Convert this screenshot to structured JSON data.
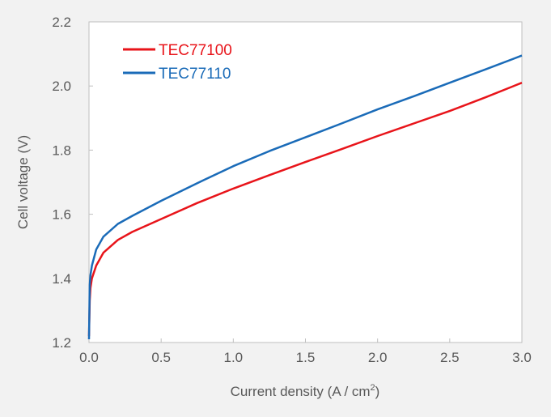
{
  "chart_data": {
    "type": "line",
    "title": "",
    "xlabel": "Current density (A / cm",
    "xlabel_sup": "2",
    "xlabel_end": ")",
    "ylabel": "Cell voltage (V)",
    "xlim": [
      0,
      3.0
    ],
    "ylim": [
      1.2,
      2.2
    ],
    "xticks": [
      "0.0",
      "0.5",
      "1.0",
      "1.5",
      "2.0",
      "2.5",
      "3.0"
    ],
    "yticks": [
      "1.2",
      "1.4",
      "1.6",
      "1.8",
      "2.0",
      "2.2"
    ],
    "grid": false,
    "legend_position": "top-left",
    "series": [
      {
        "name": "TEC77100",
        "color": "#e8141a",
        "x": [
          0,
          0.005,
          0.01,
          0.02,
          0.05,
          0.1,
          0.2,
          0.3,
          0.5,
          0.75,
          1.0,
          1.25,
          1.5,
          1.75,
          2.0,
          2.25,
          2.5,
          2.75,
          3.0
        ],
        "y": [
          1.22,
          1.33,
          1.37,
          1.4,
          1.44,
          1.48,
          1.52,
          1.545,
          1.585,
          1.635,
          1.68,
          1.722,
          1.763,
          1.803,
          1.844,
          1.883,
          1.922,
          1.965,
          2.01
        ]
      },
      {
        "name": "TEC77110",
        "color": "#1a6bb8",
        "x": [
          0,
          0.005,
          0.01,
          0.02,
          0.05,
          0.1,
          0.2,
          0.3,
          0.5,
          0.75,
          1.0,
          1.25,
          1.5,
          1.75,
          2.0,
          2.25,
          2.5,
          2.75,
          3.0
        ],
        "y": [
          1.21,
          1.38,
          1.41,
          1.44,
          1.49,
          1.53,
          1.57,
          1.595,
          1.642,
          1.697,
          1.75,
          1.797,
          1.84,
          1.883,
          1.927,
          1.968,
          2.01,
          2.052,
          2.095
        ]
      }
    ]
  }
}
